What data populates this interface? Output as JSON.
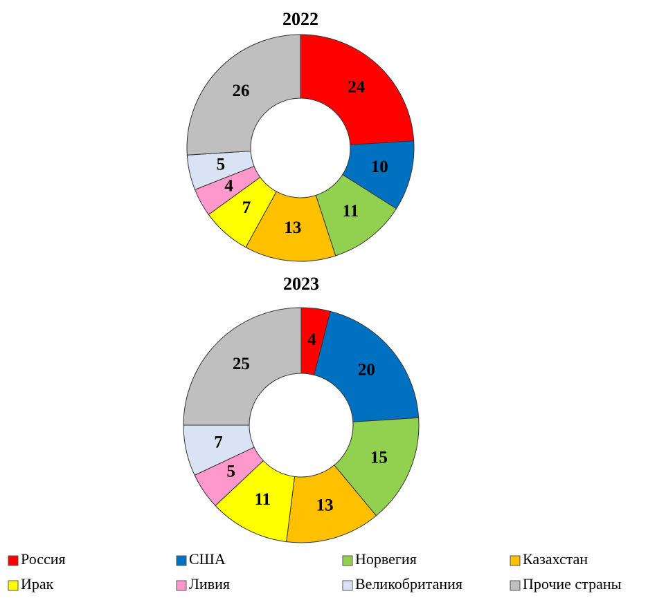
{
  "chart_data": [
    {
      "type": "donut",
      "title": "2022",
      "categories": [
        "Россия",
        "США",
        "Норвегия",
        "Казахстан",
        "Ирак",
        "Ливия",
        "Великобритания",
        "Прочие страны"
      ],
      "values": [
        24,
        10,
        11,
        13,
        7,
        4,
        5,
        26
      ],
      "colors": [
        "#ff0000",
        "#0070c0",
        "#92d050",
        "#ffc000",
        "#ffff00",
        "#ff99cc",
        "#dae3f3",
        "#bfbfbf"
      ]
    },
    {
      "type": "donut",
      "title": "2023",
      "categories": [
        "Россия",
        "США",
        "Норвегия",
        "Казахстан",
        "Ирак",
        "Ливия",
        "Великобритания",
        "Прочие страны"
      ],
      "values": [
        4,
        20,
        15,
        13,
        11,
        5,
        7,
        25
      ],
      "colors": [
        "#ff0000",
        "#0070c0",
        "#92d050",
        "#ffc000",
        "#ffff00",
        "#ff99cc",
        "#dae3f3",
        "#bfbfbf"
      ]
    }
  ]
}
